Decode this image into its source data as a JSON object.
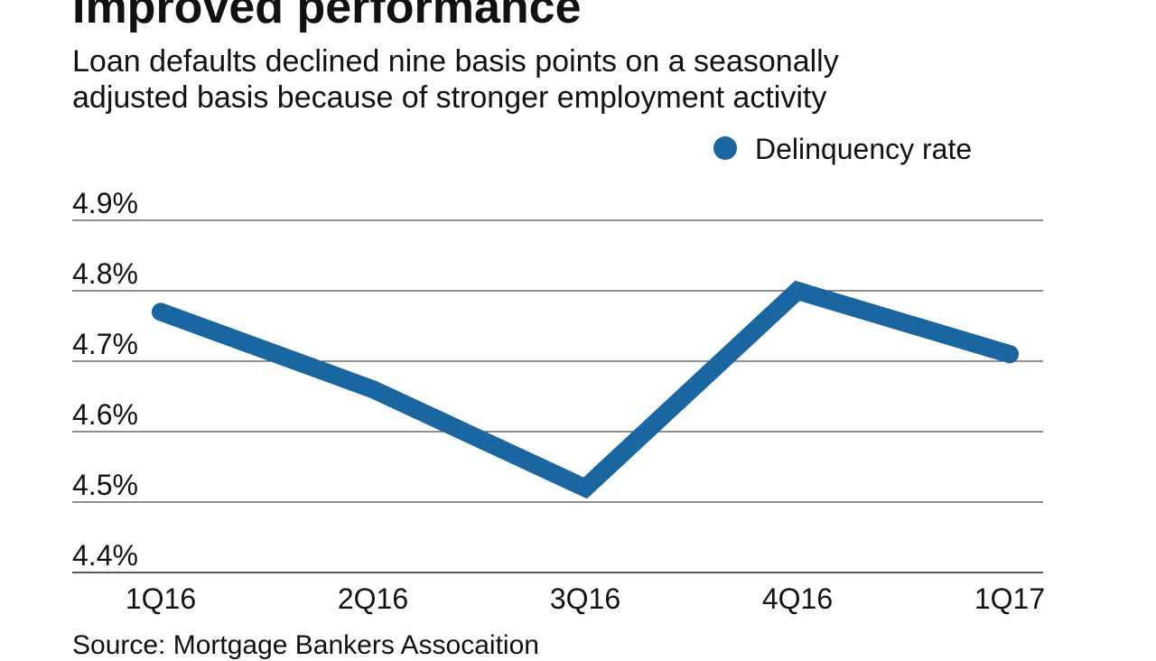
{
  "chart_data": {
    "type": "line",
    "title": "Improved performance",
    "subtitle_lines": [
      "Loan defaults declined nine basis points on a seasonally",
      "adjusted basis because of stronger employment activity"
    ],
    "categories": [
      "1Q16",
      "2Q16",
      "3Q16",
      "4Q16",
      "1Q17"
    ],
    "series": [
      {
        "name": "Delinquency rate",
        "color": "#1a66a0",
        "values": [
          4.77,
          4.66,
          4.52,
          4.8,
          4.71
        ]
      }
    ],
    "y_ticks": [
      4.4,
      4.5,
      4.6,
      4.7,
      4.8,
      4.9
    ],
    "y_tick_labels": [
      "4.4%",
      "4.5%",
      "4.6%",
      "4.7%",
      "4.8%",
      "4.9%"
    ],
    "ylim": [
      4.4,
      4.9
    ],
    "grid": true,
    "legend_position": "top-right",
    "xlabel": "",
    "ylabel": "",
    "source": "Source: Mortgage Bankers Assocaition",
    "colors": {
      "series": "#1a66a0",
      "grid": "#222222",
      "text": "#111111"
    }
  }
}
